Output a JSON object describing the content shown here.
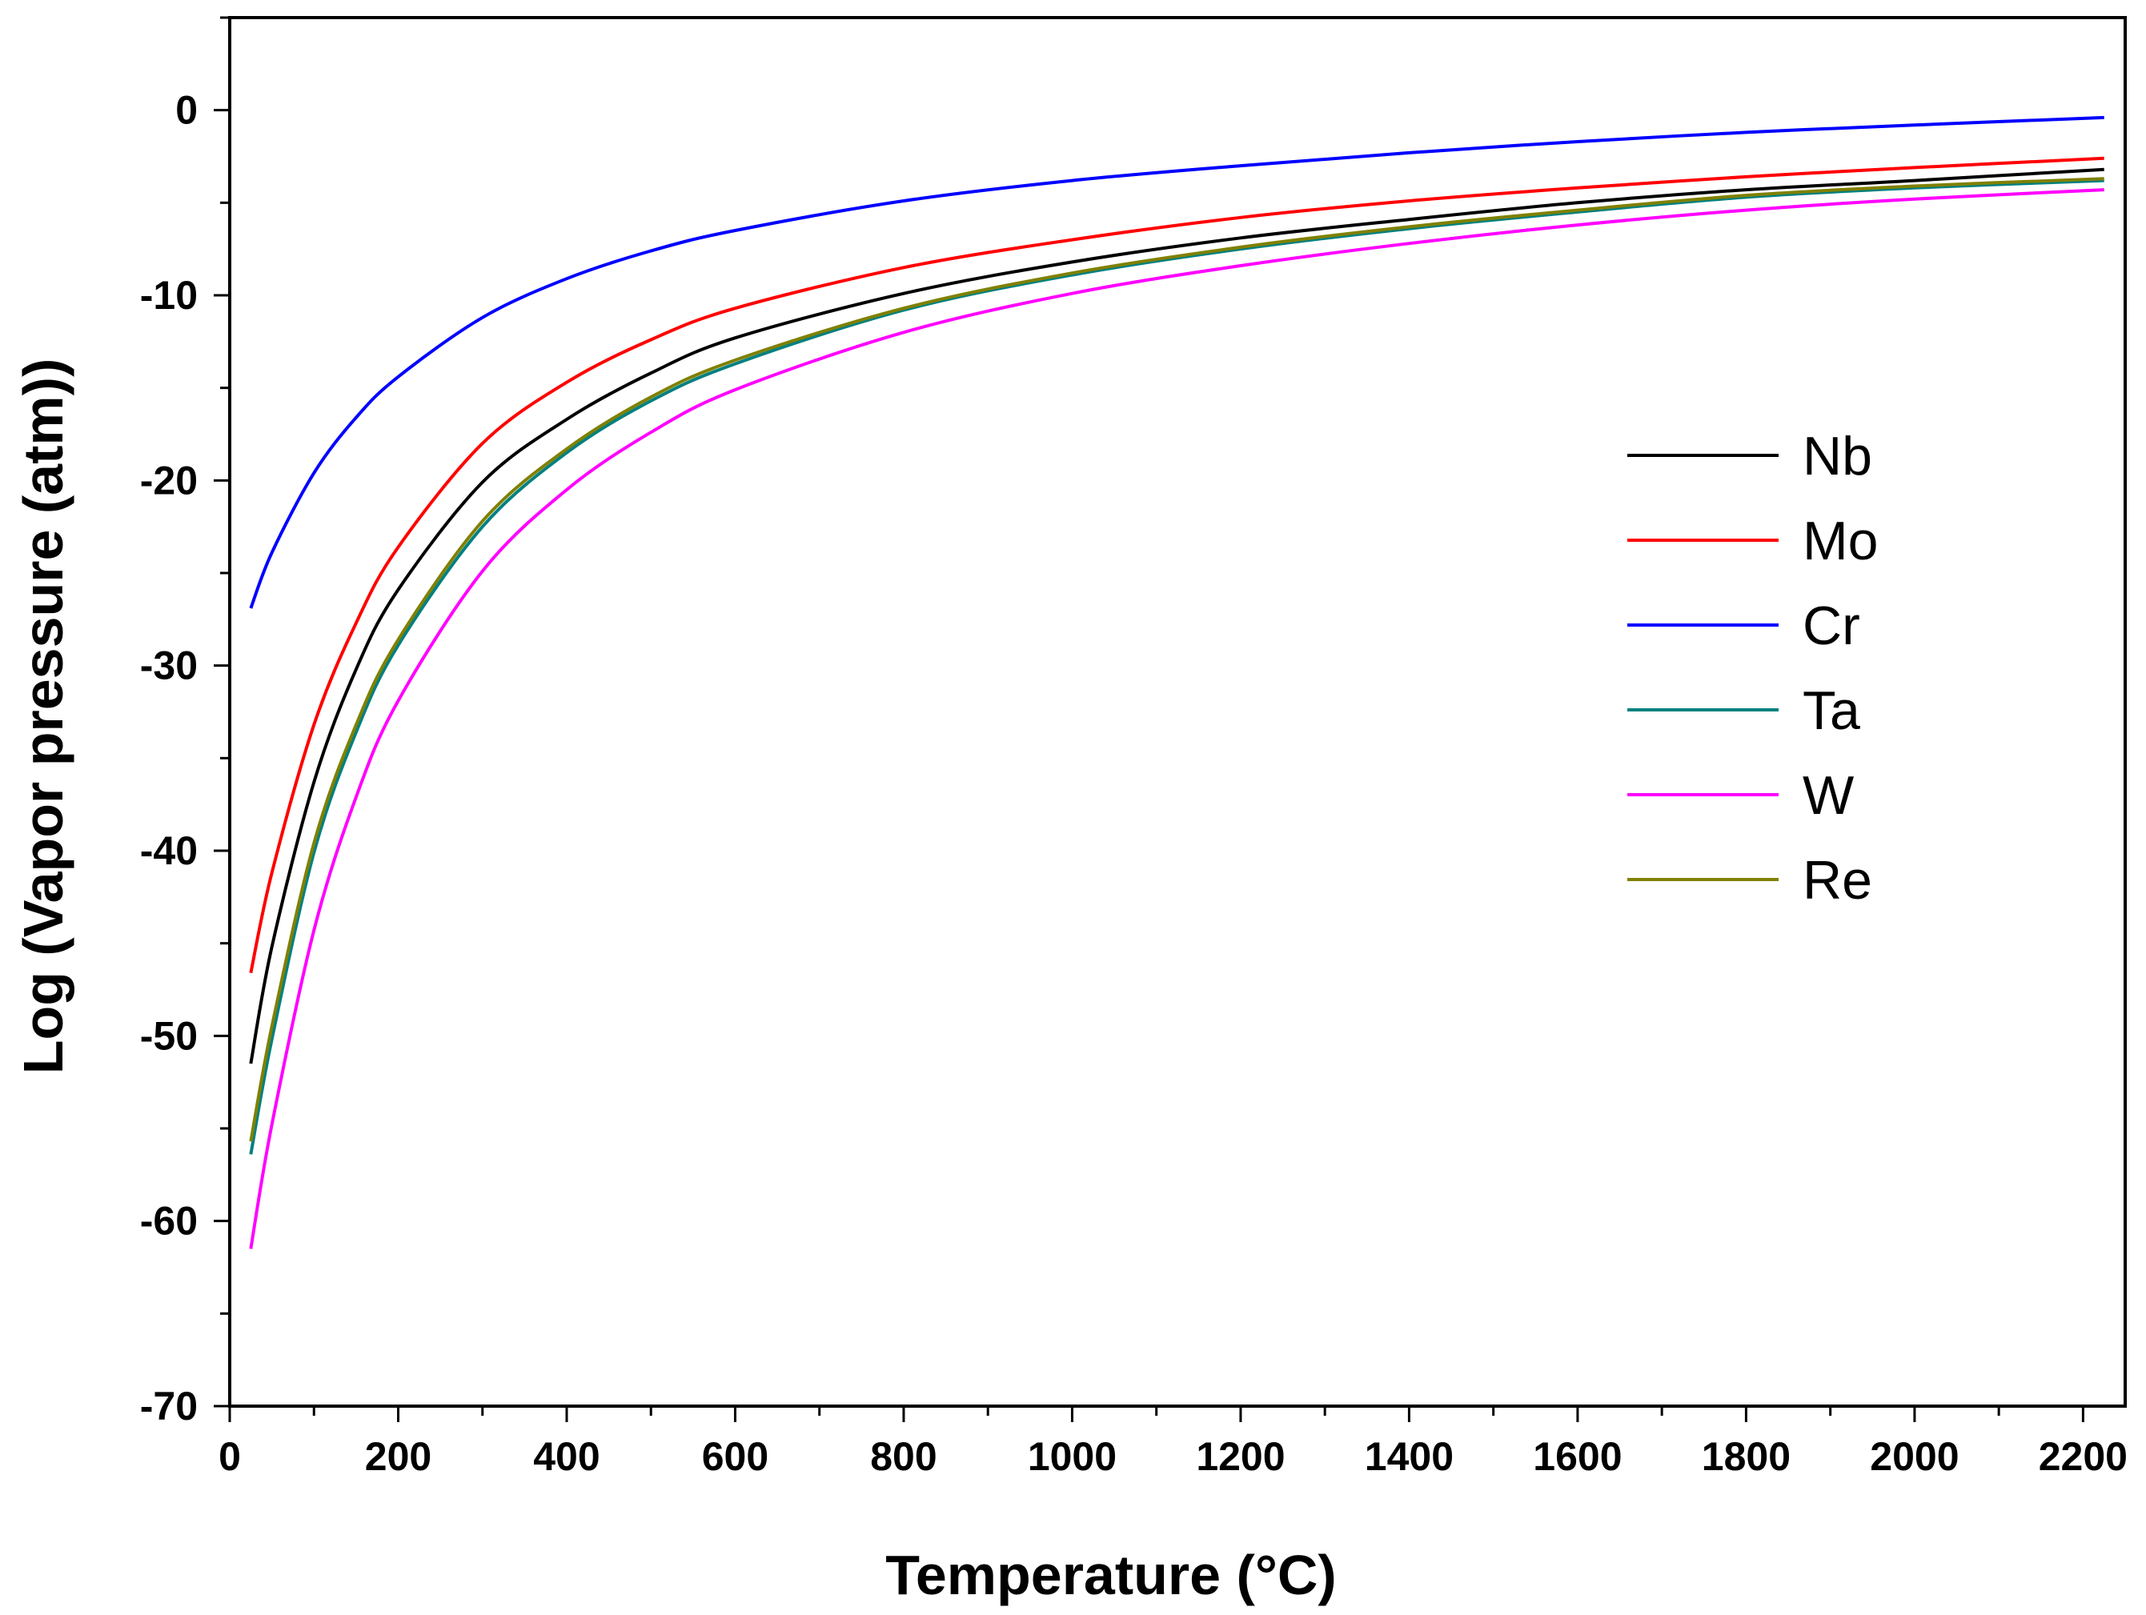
{
  "chart_data": {
    "type": "line",
    "title": "",
    "xlabel": "Temperature (°C)",
    "ylabel": "Log (Vapor pressure (atm))",
    "xlim": [
      0,
      2250
    ],
    "ylim": [
      -70,
      5
    ],
    "xticks": [
      0,
      200,
      400,
      600,
      800,
      1000,
      1200,
      1400,
      1600,
      1800,
      2000,
      2200
    ],
    "yticks": [
      0,
      -10,
      -20,
      -30,
      -40,
      -50,
      -60,
      -70
    ],
    "grid": false,
    "legend_position": "right-center",
    "x": [
      25,
      50,
      100,
      150,
      200,
      300,
      400,
      500,
      600,
      800,
      1000,
      1200,
      1400,
      1600,
      1800,
      2000,
      2225
    ],
    "series": [
      {
        "name": "Nb",
        "color": "#000000",
        "values": [
          -51.5,
          -45.2,
          -36.3,
          -30.2,
          -25.9,
          -20.1,
          -16.7,
          -14.2,
          -12.3,
          -9.9,
          -8.2,
          -6.9,
          -5.9,
          -5.0,
          -4.3,
          -3.8,
          -3.2
        ]
      },
      {
        "name": "Mo",
        "color": "#ff0000",
        "values": [
          -46.6,
          -41.2,
          -33.2,
          -27.7,
          -23.6,
          -18.0,
          -14.7,
          -12.4,
          -10.7,
          -8.5,
          -7.0,
          -5.8,
          -4.9,
          -4.2,
          -3.6,
          -3.1,
          -2.6
        ]
      },
      {
        "name": "Cr",
        "color": "#0000ff",
        "values": [
          -26.9,
          -23.9,
          -19.6,
          -16.6,
          -14.4,
          -11.2,
          -9.1,
          -7.6,
          -6.5,
          -4.9,
          -3.8,
          -3.0,
          -2.3,
          -1.7,
          -1.2,
          -0.8,
          -0.4
        ]
      },
      {
        "name": "Ta",
        "color": "#008080",
        "values": [
          -56.4,
          -50.2,
          -40.1,
          -33.6,
          -28.9,
          -22.5,
          -18.5,
          -15.7,
          -13.7,
          -10.8,
          -8.9,
          -7.5,
          -6.4,
          -5.5,
          -4.7,
          -4.2,
          -3.8
        ]
      },
      {
        "name": "W",
        "color": "#ff00ff",
        "values": [
          -61.5,
          -54.8,
          -44.3,
          -37.1,
          -31.9,
          -24.9,
          -20.5,
          -17.4,
          -15.1,
          -12.0,
          -9.9,
          -8.4,
          -7.2,
          -6.2,
          -5.4,
          -4.8,
          -4.3
        ]
      },
      {
        "name": "Re",
        "color": "#808000",
        "values": [
          -55.7,
          -49.5,
          -39.6,
          -33.2,
          -28.6,
          -22.2,
          -18.3,
          -15.5,
          -13.5,
          -10.7,
          -8.8,
          -7.4,
          -6.3,
          -5.4,
          -4.6,
          -4.1,
          -3.7
        ]
      }
    ]
  }
}
